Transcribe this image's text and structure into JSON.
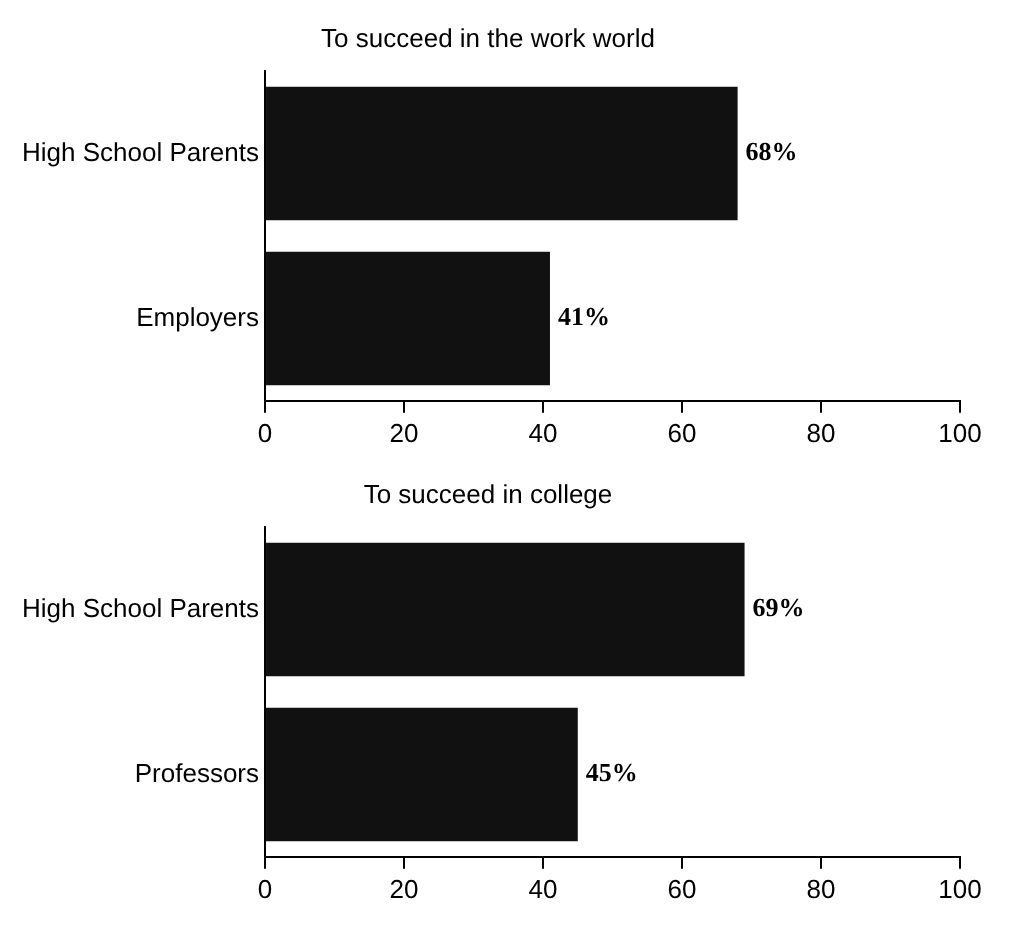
{
  "chart_data": [
    {
      "type": "bar",
      "orientation": "horizontal",
      "title": "To succeed in the work world",
      "categories": [
        "High School Parents",
        "Employers"
      ],
      "values": [
        68,
        41
      ],
      "value_labels": [
        "68%",
        "41%"
      ],
      "color": "#111111",
      "xlim": [
        0,
        100
      ],
      "xticks": [
        0,
        20,
        40,
        60,
        80,
        100
      ],
      "grid": false,
      "legend": false
    },
    {
      "type": "bar",
      "orientation": "horizontal",
      "title": "To succeed in college",
      "categories": [
        "High School Parents",
        "Professors"
      ],
      "values": [
        69,
        45
      ],
      "value_labels": [
        "69%",
        "45%"
      ],
      "color": "#111111",
      "xlim": [
        0,
        100
      ],
      "xticks": [
        0,
        20,
        40,
        60,
        80,
        100
      ],
      "grid": false,
      "legend": false
    }
  ]
}
